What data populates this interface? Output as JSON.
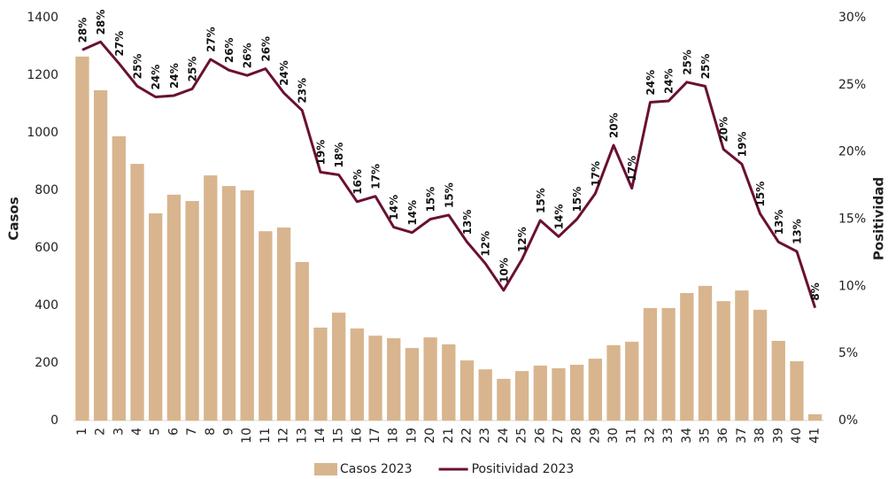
{
  "chart_data": {
    "type": "bar-line",
    "categories": [
      "1",
      "2",
      "3",
      "4",
      "5",
      "6",
      "7",
      "8",
      "9",
      "10",
      "11",
      "12",
      "13",
      "14",
      "15",
      "16",
      "17",
      "18",
      "19",
      "20",
      "21",
      "22",
      "23",
      "24",
      "25",
      "26",
      "27",
      "28",
      "29",
      "30",
      "31",
      "32",
      "33",
      "34",
      "35",
      "36",
      "37",
      "38",
      "39",
      "40",
      "41"
    ],
    "y_label": "Casos",
    "y2_label": "Positividad",
    "ylim": [
      0,
      1400
    ],
    "yticks": [
      0,
      200,
      400,
      600,
      800,
      1000,
      1200,
      1400
    ],
    "y2lim": [
      0,
      30
    ],
    "y2ticks": [
      {
        "value": 0,
        "label": "0%"
      },
      {
        "value": 5,
        "label": "5%"
      },
      {
        "value": 10,
        "label": "10%"
      },
      {
        "value": 15,
        "label": "15%"
      },
      {
        "value": 20,
        "label": "20%"
      },
      {
        "value": 25,
        "label": "25%"
      },
      {
        "value": 30,
        "label": "30%"
      }
    ],
    "series": [
      {
        "name": "Casos 2023",
        "type": "bar",
        "color": "#d8b58e",
        "values": [
          1265,
          1148,
          988,
          892,
          720,
          785,
          763,
          852,
          815,
          800,
          658,
          671,
          551,
          323,
          375,
          320,
          295,
          286,
          252,
          289,
          265,
          209,
          178,
          145,
          172,
          191,
          182,
          194,
          215,
          262,
          274,
          391,
          391,
          443,
          468,
          415,
          452,
          385,
          277,
          206,
          22
        ]
      },
      {
        "name": "Positividad 2023",
        "type": "line",
        "axis": "y2",
        "color": "#6a1034",
        "values": [
          27.6,
          28.2,
          26.6,
          24.9,
          24.1,
          24.2,
          24.7,
          26.9,
          26.1,
          25.7,
          26.2,
          24.4,
          23.1,
          18.5,
          18.3,
          16.3,
          16.7,
          14.4,
          14.0,
          15.0,
          15.3,
          13.3,
          11.7,
          9.7,
          12.0,
          14.9,
          13.7,
          15.0,
          16.9,
          20.5,
          17.3,
          23.7,
          23.8,
          25.2,
          24.9,
          20.2,
          19.1,
          15.4,
          13.3,
          12.6,
          8.4
        ],
        "value_labels": [
          "28%",
          "28%",
          "27%",
          "25%",
          "24%",
          "24%",
          "25%",
          "27%",
          "26%",
          "26%",
          "26%",
          "24%",
          "23%",
          "19%",
          "18%",
          "16%",
          "17%",
          "14%",
          "14%",
          "15%",
          "15%",
          "13%",
          "12%",
          "10%",
          "12%",
          "15%",
          "14%",
          "15%",
          "17%",
          "20%",
          "17%",
          "24%",
          "24%",
          "25%",
          "25%",
          "20%",
          "19%",
          "15%",
          "13%",
          "13%",
          "8%"
        ]
      }
    ]
  }
}
